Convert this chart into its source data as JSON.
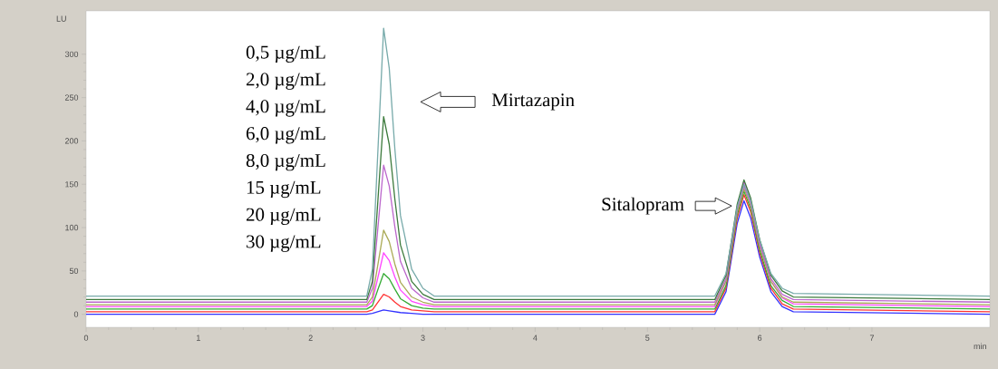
{
  "chart_data": {
    "type": "line",
    "xlabel": "min",
    "ylabel": "LU",
    "marker": "none",
    "grid": false,
    "xlim": [
      0,
      8.05
    ],
    "ylim": [
      -15,
      350
    ],
    "xticks": [
      0,
      1,
      2,
      3,
      4,
      5,
      6,
      7
    ],
    "yticks": [
      0,
      50,
      100,
      150,
      200,
      250,
      300
    ],
    "x": [
      0,
      2.5,
      2.55,
      2.6,
      2.65,
      2.7,
      2.75,
      2.8,
      2.9,
      3.0,
      3.1,
      5.6,
      5.7,
      5.8,
      5.86,
      5.92,
      6.0,
      6.1,
      6.2,
      6.3,
      8.05
    ],
    "series": [
      {
        "color": "#3333ff",
        "values": [
          0,
          0,
          1,
          3,
          5,
          4,
          3,
          2,
          1,
          0,
          0,
          0,
          26,
          105,
          131,
          111,
          66,
          26,
          9,
          3,
          0
        ]
      },
      {
        "color": "#ff3333",
        "values": [
          3,
          3,
          5,
          14,
          23,
          20,
          14,
          9,
          5,
          4,
          3,
          3,
          30,
          111,
          138,
          118,
          71,
          30,
          12,
          6,
          3
        ]
      },
      {
        "color": "#33aa33",
        "values": [
          6,
          6,
          10,
          29,
          47,
          41,
          29,
          18,
          10,
          7,
          6,
          6,
          33,
          115,
          142,
          122,
          74,
          33,
          16,
          9,
          6
        ]
      },
      {
        "color": "#ff44ff",
        "values": [
          9,
          9,
          15,
          43,
          71,
          62,
          43,
          28,
          15,
          11,
          9,
          9,
          38,
          124,
          153,
          131,
          81,
          38,
          19,
          12,
          9
        ]
      },
      {
        "color": "#aaaa55",
        "values": [
          11,
          11,
          20,
          58,
          97,
          84,
          58,
          37,
          20,
          14,
          11,
          11,
          38,
          118,
          145,
          125,
          78,
          38,
          20,
          14,
          11
        ]
      },
      {
        "color": "#bb66cc",
        "values": [
          14,
          14,
          30,
          101,
          172,
          148,
          101,
          61,
          30,
          19,
          14,
          14,
          41,
          121,
          148,
          128,
          81,
          41,
          23,
          17,
          14
        ]
      },
      {
        "color": "#3c7a3c",
        "values": [
          17,
          17,
          38,
          133,
          228,
          196,
          133,
          80,
          38,
          23,
          17,
          17,
          45,
          127,
          155,
          134,
          86,
          45,
          27,
          20,
          17
        ]
      },
      {
        "color": "#77aaaa",
        "values": [
          21,
          21,
          52,
          191,
          330,
          284,
          191,
          114,
          52,
          30,
          21,
          21,
          47,
          124,
          150,
          131,
          86,
          47,
          30,
          24,
          21
        ]
      }
    ],
    "annotations": [
      "0,5 µg/mL",
      "2,0 µg/mL",
      "4,0 µg/mL",
      "6,0 µg/mL",
      "8,0 µg/mL",
      "15 µg/mL",
      "20 µg/mL",
      "30 µg/mL",
      "Mirtazapin",
      "Sitalopram"
    ]
  }
}
